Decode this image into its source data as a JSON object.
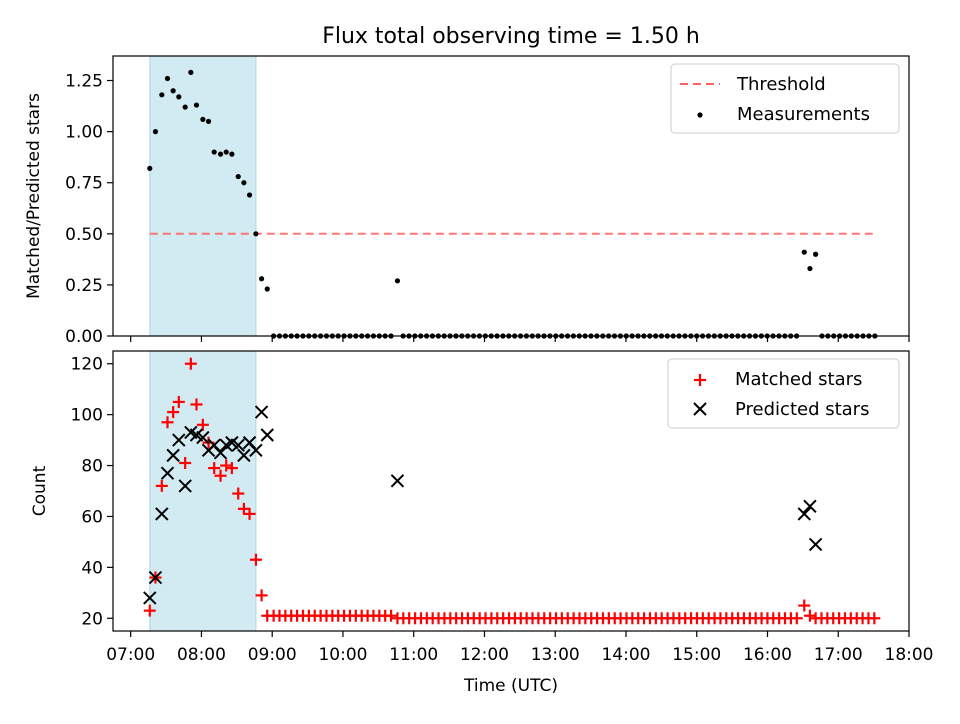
{
  "figure": {
    "title": "Flux total observing time = 1.50 h",
    "xlabel": "Time (UTC)"
  },
  "colors": {
    "shade": "#add8e6",
    "threshold": "#ff6060",
    "matched": "#ff0000",
    "predicted": "#000000",
    "measurement": "#000000"
  },
  "chart_data": [
    {
      "type": "scatter",
      "panel": "top",
      "ylabel": "Matched/Predicted stars",
      "xlim": [
        6.75,
        18.0
      ],
      "ylim": [
        0,
        1.37
      ],
      "x_unit": "hours UTC",
      "yticks": [
        0,
        0.25,
        0.5,
        0.75,
        1.0,
        1.25
      ],
      "ytick_labels": [
        "0.00",
        "0.25",
        "0.50",
        "0.75",
        "1.00",
        "1.25"
      ],
      "xticks": [
        7,
        8,
        9,
        10,
        11,
        12,
        13,
        14,
        15,
        16,
        17,
        18
      ],
      "shaded_interval": [
        7.27,
        8.77
      ],
      "threshold": {
        "value": 0.5,
        "x_range": [
          7.27,
          17.55
        ]
      },
      "legend": {
        "location": "upper-right",
        "entries": [
          "Threshold",
          "Measurements"
        ]
      },
      "series": [
        {
          "name": "Measurements",
          "marker": "dot",
          "x": [
            7.27,
            7.35,
            7.44,
            7.52,
            7.6,
            7.68,
            7.77,
            7.85,
            7.93,
            8.02,
            8.1,
            8.18,
            8.27,
            8.35,
            8.43,
            8.52,
            8.6,
            8.68,
            8.77,
            8.85,
            8.93
          ],
          "y": [
            0.82,
            1.0,
            1.18,
            1.26,
            1.2,
            1.17,
            1.12,
            1.29,
            1.13,
            1.06,
            1.05,
            0.9,
            0.89,
            0.9,
            0.89,
            0.78,
            0.75,
            0.69,
            0.5,
            0.28,
            0.23
          ]
        },
        {
          "name": "Measurements (late)",
          "marker": "dot",
          "x": [
            10.77,
            16.52,
            16.6,
            16.68
          ],
          "y": [
            0.27,
            0.41,
            0.33,
            0.4
          ]
        },
        {
          "name": "Measurements (zero)",
          "marker": "dot",
          "y_constant": 0,
          "ranges": [
            [
              9.02,
              10.69,
              0.083
            ],
            [
              10.85,
              16.44,
              0.083
            ],
            [
              16.77,
              17.55,
              0.083
            ]
          ]
        }
      ]
    },
    {
      "type": "scatter",
      "panel": "bottom",
      "ylabel": "Count",
      "xlim": [
        6.75,
        18.0
      ],
      "ylim": [
        15,
        125
      ],
      "yticks": [
        20,
        40,
        60,
        80,
        100,
        120
      ],
      "ytick_labels": [
        "20",
        "40",
        "60",
        "80",
        "100",
        "120"
      ],
      "xticks": [
        7,
        8,
        9,
        10,
        11,
        12,
        13,
        14,
        15,
        16,
        17,
        18
      ],
      "xtick_labels": [
        "07:00",
        "08:00",
        "09:00",
        "10:00",
        "11:00",
        "12:00",
        "13:00",
        "14:00",
        "15:00",
        "16:00",
        "17:00",
        "18:00"
      ],
      "shaded_interval": [
        7.27,
        8.77
      ],
      "legend": {
        "location": "upper-right",
        "entries": [
          "Matched stars",
          "Predicted stars"
        ]
      },
      "series": [
        {
          "name": "Matched stars",
          "marker": "plus",
          "x": [
            7.27,
            7.35,
            7.44,
            7.52,
            7.6,
            7.68,
            7.77,
            7.85,
            7.93,
            8.02,
            8.1,
            8.18,
            8.27,
            8.35,
            8.43,
            8.52,
            8.6,
            8.68,
            8.77,
            8.85,
            8.93,
            16.52,
            16.6
          ],
          "y": [
            23,
            36,
            72,
            97,
            101,
            105,
            81,
            120,
            104,
            96,
            89,
            79,
            76,
            80,
            79,
            69,
            63,
            61,
            43,
            29,
            21,
            25,
            21
          ]
        },
        {
          "name": "Matched stars (baseline)",
          "marker": "plus",
          "y_constant_ranges": [
            [
              9.02,
              10.69,
              0.083,
              21
            ],
            [
              10.77,
              16.44,
              0.083,
              20
            ],
            [
              16.68,
              17.55,
              0.083,
              20
            ]
          ]
        },
        {
          "name": "Predicted stars",
          "marker": "x",
          "x": [
            7.27,
            7.35,
            7.44,
            7.52,
            7.6,
            7.68,
            7.77,
            7.85,
            7.93,
            8.02,
            8.1,
            8.18,
            8.27,
            8.35,
            8.43,
            8.52,
            8.6,
            8.68,
            8.77,
            8.85,
            8.93,
            10.77,
            16.52,
            16.6,
            16.68
          ],
          "y": [
            28,
            36,
            61,
            77,
            84,
            90,
            72,
            93,
            92,
            91,
            86,
            88,
            85,
            88,
            89,
            88,
            84,
            89,
            86,
            101,
            92,
            74,
            61,
            64,
            49
          ]
        }
      ]
    }
  ]
}
